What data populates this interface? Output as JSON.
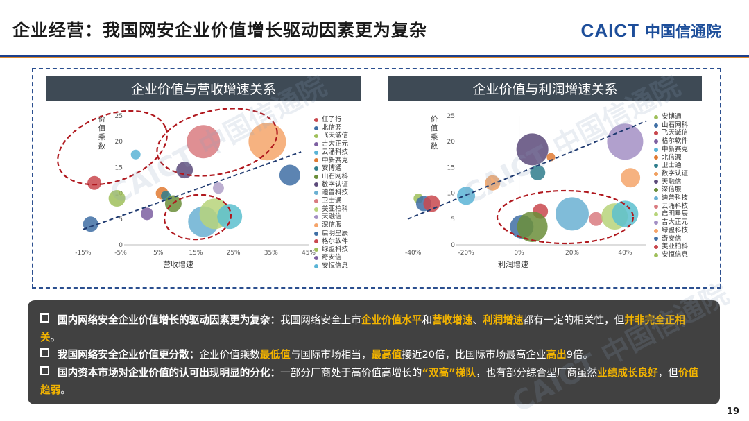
{
  "header": {
    "title": "企业经营：我国网安企业价值增长驱动因素更为复杂",
    "logo_en": "CAICT",
    "logo_cn": "中国信通院"
  },
  "watermark": {
    "text": "CAICT 中国信通院"
  },
  "charts": {
    "left": {
      "title": "企业价值与营收增速关系",
      "ylabel": "价值乘数",
      "xlabel": "营收增速",
      "xticks": [
        "-15%",
        "-5%",
        "5%",
        "15%",
        "25%",
        "35%",
        "45%"
      ],
      "yticks": [
        "0",
        "5",
        "10",
        "15",
        "20",
        "25"
      ]
    },
    "right": {
      "title": "企业价值与利润增速关系",
      "ylabel": "价值乘数",
      "xlabel": "利润增速",
      "xticks": [
        "-40%",
        "-20%",
        "0%",
        "20%",
        "40%"
      ],
      "yticks": [
        "0",
        "5",
        "10",
        "15",
        "20",
        "25"
      ]
    }
  },
  "chart_data": [
    {
      "type": "scatter",
      "title": "企业价值与营收增速关系",
      "xlabel": "营收增速",
      "ylabel": "价值乘数",
      "xlim": [
        -17,
        45
      ],
      "ylim": [
        0,
        25
      ],
      "x_unit": "%",
      "points": [
        {
          "name": "任子行",
          "x": -12,
          "y": 12,
          "size": 10,
          "color": "#c9484e"
        },
        {
          "name": "北信源",
          "x": -13,
          "y": 4,
          "size": 11,
          "color": "#3f6fa5"
        },
        {
          "name": "飞天诚信",
          "x": -6,
          "y": 9,
          "size": 12,
          "color": "#9fbf5a"
        },
        {
          "name": "吉大正元",
          "x": -1,
          "y": 17.5,
          "size": 7,
          "color": "#5ab4d6"
        },
        {
          "name": "云涌科技",
          "x": 2,
          "y": 6,
          "size": 9,
          "color": "#7d5fa1"
        },
        {
          "name": "中新赛克",
          "x": 6,
          "y": 10,
          "size": 9,
          "color": "#e07a33"
        },
        {
          "name": "安博通",
          "x": 7,
          "y": 9.5,
          "size": 7,
          "color": "#2f7d8c"
        },
        {
          "name": "山石网科",
          "x": 9,
          "y": 8,
          "size": 12,
          "color": "#6b8e3a"
        },
        {
          "name": "数字认证",
          "x": 12,
          "y": 14.5,
          "size": 12,
          "color": "#5c4a7a"
        },
        {
          "name": "迪普科技",
          "x": 17,
          "y": 4.5,
          "size": 22,
          "color": "#6ab0d2"
        },
        {
          "name": "卫士通",
          "x": 17,
          "y": 20,
          "size": 24,
          "color": "#d97b80"
        },
        {
          "name": "美亚柏科",
          "x": 20,
          "y": 6,
          "size": 22,
          "color": "#b7d47a"
        },
        {
          "name": "天融信",
          "x": 24,
          "y": 5.5,
          "size": 18,
          "color": "#5cc0cf"
        },
        {
          "name": "深信服",
          "x": 34,
          "y": 20,
          "size": 27,
          "color": "#f5a46a"
        },
        {
          "name": "启明星辰",
          "x": 40,
          "y": 13.5,
          "size": 15,
          "color": "#3f6fa5"
        },
        {
          "name": "格尔软件",
          "x": 21,
          "y": 11,
          "size": 8,
          "color": "#b0a0c8"
        }
      ]
    },
    {
      "type": "scatter",
      "title": "企业价值与利润增速关系",
      "xlabel": "利润增速",
      "ylabel": "价值乘数",
      "xlim": [
        -42,
        48
      ],
      "ylim": [
        0,
        25
      ],
      "x_unit": "%",
      "points": [
        {
          "name": "安博通",
          "x": -38,
          "y": 9,
          "size": 7,
          "color": "#9fbf5a"
        },
        {
          "name": "山石网科",
          "x": -36,
          "y": 8,
          "size": 11,
          "color": "#3f6fa5"
        },
        {
          "name": "飞天诚信",
          "x": -33,
          "y": 8,
          "size": 12,
          "color": "#c9484e"
        },
        {
          "name": "格尔软件",
          "x": -20,
          "y": 9.5,
          "size": 13,
          "color": "#5ab4d6"
        },
        {
          "name": "中新赛克",
          "x": -10,
          "y": 12,
          "size": 11,
          "color": "#f0a060"
        },
        {
          "name": "北信源",
          "x": 1,
          "y": 3.5,
          "size": 17,
          "color": "#3f6fa5"
        },
        {
          "name": "卫士通",
          "x": 5,
          "y": 18.5,
          "size": 23,
          "color": "#5c4a7a"
        },
        {
          "name": "数字认证",
          "x": 7,
          "y": 14,
          "size": 11,
          "color": "#2f7d8c"
        },
        {
          "name": "天融信",
          "x": 8,
          "y": 6.5,
          "size": 11,
          "color": "#c9484e"
        },
        {
          "name": "深信服",
          "x": 5,
          "y": 3.5,
          "size": 22,
          "color": "#6b8e3a"
        },
        {
          "name": "迪普科技",
          "x": 20,
          "y": 6,
          "size": 24,
          "color": "#6ab0d2"
        },
        {
          "name": "启明星辰",
          "x": 29,
          "y": 5,
          "size": 10,
          "color": "#d97b80"
        },
        {
          "name": "美亚柏科",
          "x": 36,
          "y": 5.5,
          "size": 19,
          "color": "#b7d47a"
        },
        {
          "name": "奇安信",
          "x": 40,
          "y": 6,
          "size": 19,
          "color": "#5cc0cf"
        },
        {
          "name": "吉大正元",
          "x": 40,
          "y": 20,
          "size": 26,
          "color": "#a38fc4"
        },
        {
          "name": "安恒信息",
          "x": 42,
          "y": 13,
          "size": 14,
          "color": "#f5a46a"
        },
        {
          "name": "云涌科技",
          "x": 12,
          "y": 17,
          "size": 6,
          "color": "#e07a33"
        }
      ]
    }
  ],
  "legends": {
    "left": [
      {
        "label": "任子行",
        "color": "#c9484e"
      },
      {
        "label": "北信源",
        "color": "#3f6fa5"
      },
      {
        "label": "飞天诚信",
        "color": "#9fbf5a"
      },
      {
        "label": "吉大正元",
        "color": "#7d5fa1"
      },
      {
        "label": "云涌科技",
        "color": "#5ab4d6"
      },
      {
        "label": "中新赛克",
        "color": "#e07a33"
      },
      {
        "label": "安博通",
        "color": "#2f7d8c"
      },
      {
        "label": "山石网科",
        "color": "#6b8e3a"
      },
      {
        "label": "数字认证",
        "color": "#5c4a7a"
      },
      {
        "label": "迪普科技",
        "color": "#6ab0d2"
      },
      {
        "label": "卫士通",
        "color": "#d97b80"
      },
      {
        "label": "美亚柏科",
        "color": "#b7d47a"
      },
      {
        "label": "天融信",
        "color": "#a38fc4"
      },
      {
        "label": "深信服",
        "color": "#f5a46a"
      },
      {
        "label": "启明星辰",
        "color": "#3f6fa5"
      },
      {
        "label": "格尔软件",
        "color": "#c9484e"
      },
      {
        "label": "绿盟科技",
        "color": "#9fbf5a"
      },
      {
        "label": "奇安信",
        "color": "#7d5fa1"
      },
      {
        "label": "安恒信息",
        "color": "#5ab4d6"
      }
    ],
    "right": [
      {
        "label": "安博通",
        "color": "#9fbf5a"
      },
      {
        "label": "山石网科",
        "color": "#3f6fa5"
      },
      {
        "label": "飞天诚信",
        "color": "#c9484e"
      },
      {
        "label": "格尔软件",
        "color": "#7d5fa1"
      },
      {
        "label": "中新赛克",
        "color": "#5ab4d6"
      },
      {
        "label": "北信源",
        "color": "#e07a33"
      },
      {
        "label": "卫士通",
        "color": "#2f7d8c"
      },
      {
        "label": "数字认证",
        "color": "#f0a060"
      },
      {
        "label": "天融信",
        "color": "#5c4a7a"
      },
      {
        "label": "深信服",
        "color": "#6b8e3a"
      },
      {
        "label": "迪普科技",
        "color": "#6ab0d2"
      },
      {
        "label": "云涌科技",
        "color": "#d97b80"
      },
      {
        "label": "启明星辰",
        "color": "#b7d47a"
      },
      {
        "label": "吉大正元",
        "color": "#a38fc4"
      },
      {
        "label": "绿盟科技",
        "color": "#f5a46a"
      },
      {
        "label": "奇安信",
        "color": "#3f6fa5"
      },
      {
        "label": "美亚柏科",
        "color": "#c9484e"
      },
      {
        "label": "安恒信息",
        "color": "#9fbf5a"
      }
    ]
  },
  "bullets": [
    {
      "segments": [
        {
          "t": "国内网络安全企业价值增长的驱动因素更为复杂：",
          "s": "b"
        },
        {
          "t": "我国网络安全上市",
          "s": ""
        },
        {
          "t": "企业价值水平",
          "s": "y"
        },
        {
          "t": "和",
          "s": ""
        },
        {
          "t": "营收增速",
          "s": "y"
        },
        {
          "t": "、",
          "s": ""
        },
        {
          "t": "利润增速",
          "s": "y"
        },
        {
          "t": "都有一定的相关性，但",
          "s": ""
        },
        {
          "t": "并非完全正相关",
          "s": "y"
        },
        {
          "t": "。",
          "s": ""
        }
      ]
    },
    {
      "segments": [
        {
          "t": "我国网络安全企业价值更分散：",
          "s": "b"
        },
        {
          "t": "企业价值乘数",
          "s": ""
        },
        {
          "t": "最低值",
          "s": "y"
        },
        {
          "t": "与国际市场相当，",
          "s": ""
        },
        {
          "t": "最高值",
          "s": "y"
        },
        {
          "t": "接近20倍，比国际市场最高企业",
          "s": ""
        },
        {
          "t": "高出",
          "s": "y"
        },
        {
          "t": "9倍。",
          "s": ""
        }
      ]
    },
    {
      "segments": [
        {
          "t": "国内资本市场对企业价值的认可出现明显的分化：",
          "s": "b"
        },
        {
          "t": "一部分厂商处于高价值高增长的",
          "s": ""
        },
        {
          "t": "“双高”梯队",
          "s": "y"
        },
        {
          "t": "，也有部分综合型厂商虽然",
          "s": ""
        },
        {
          "t": "业绩成长良好",
          "s": "y"
        },
        {
          "t": "，但",
          "s": ""
        },
        {
          "t": "价值趋弱",
          "s": "y"
        },
        {
          "t": "。",
          "s": ""
        }
      ]
    }
  ],
  "page_number": "19"
}
